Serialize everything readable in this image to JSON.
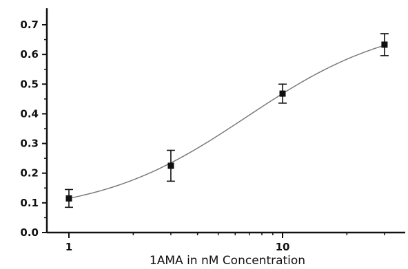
{
  "chart_data": {
    "type": "scatter",
    "title": "",
    "xlabel": "1AMA in nM Concentration",
    "ylabel": "",
    "x_scale": "log",
    "xlim": [
      0.8,
      40
    ],
    "ylim": [
      0.0,
      0.75
    ],
    "x_ticks": [
      1,
      10
    ],
    "x_tick_labels": [
      "1",
      "10"
    ],
    "y_ticks": [
      0.0,
      0.1,
      0.2,
      0.3,
      0.4,
      0.5,
      0.6,
      0.7
    ],
    "y_tick_labels": [
      "0.0",
      "0.1",
      "0.2",
      "0.3",
      "0.4",
      "0.5",
      "0.6",
      "0.7"
    ],
    "grid": false,
    "legend": "none",
    "series": [
      {
        "x": [
          1,
          3,
          10,
          30
        ],
        "y": [
          0.115,
          0.225,
          0.468,
          0.633
        ],
        "error": [
          0.03,
          0.052,
          0.032,
          0.037
        ],
        "marker": "square",
        "fit": "sigmoidal"
      }
    ]
  }
}
